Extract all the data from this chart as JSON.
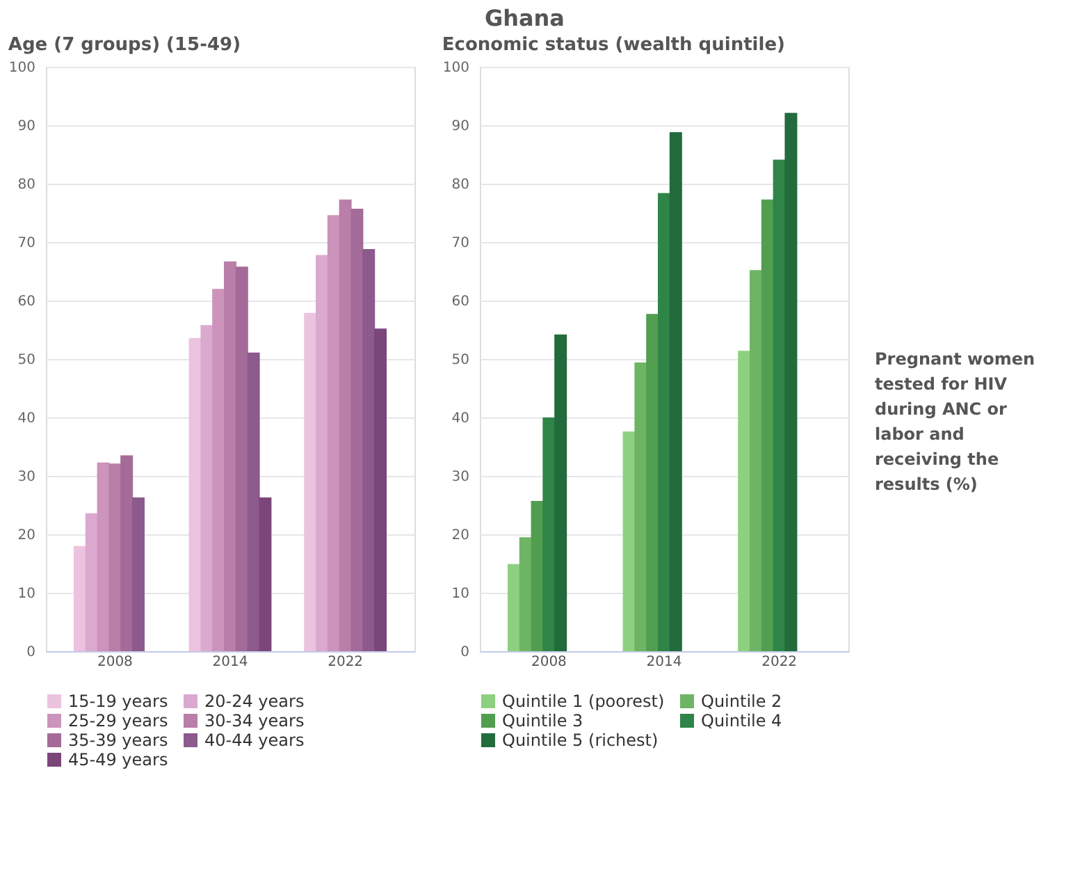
{
  "chart_data": [
    {
      "type": "other",
      "title": "Ghana",
      "annotations": [
        "Pregnant women tested for HIV during ANC or labor and receiving the results (%)"
      ]
    },
    {
      "type": "bar",
      "title": "Age (7 groups) (15-49)",
      "categories": [
        "2008",
        "2014",
        "2022"
      ],
      "ylim": [
        0,
        100
      ],
      "yticks": [
        0,
        10,
        20,
        30,
        40,
        50,
        60,
        70,
        80,
        90,
        100
      ],
      "grid": "y",
      "legend": "bottom",
      "series": [
        {
          "name": "15-19 years",
          "color": "#ebc3df",
          "values": [
            18.0,
            53.6,
            57.9
          ]
        },
        {
          "name": "20-24 years",
          "color": "#dba9cf",
          "values": [
            23.6,
            55.8,
            67.8
          ]
        },
        {
          "name": "25-29 years",
          "color": "#cc93bb",
          "values": [
            32.3,
            62.0,
            74.6
          ]
        },
        {
          "name": "30-34 years",
          "color": "#b97fa8",
          "values": [
            32.1,
            66.7,
            77.3
          ]
        },
        {
          "name": "35-39 years",
          "color": "#a46b98",
          "values": [
            33.5,
            65.8,
            75.7
          ]
        },
        {
          "name": "40-44 years",
          "color": "#8c5a8c",
          "values": [
            26.3,
            51.1,
            68.8
          ]
        },
        {
          "name": "45-49 years",
          "color": "#7b477a",
          "values": [
            null,
            26.3,
            55.2
          ]
        }
      ]
    },
    {
      "type": "bar",
      "title": "Economic status (wealth quintile)",
      "categories": [
        "2008",
        "2014",
        "2022"
      ],
      "ylim": [
        0,
        100
      ],
      "yticks": [
        0,
        10,
        20,
        30,
        40,
        50,
        60,
        70,
        80,
        90,
        100
      ],
      "grid": "y",
      "legend": "bottom",
      "series": [
        {
          "name": "Quintile 1 (poorest)",
          "color": "#8dd07f",
          "values": [
            14.9,
            37.6,
            51.4
          ]
        },
        {
          "name": "Quintile 2",
          "color": "#6db564",
          "values": [
            19.5,
            49.4,
            65.2
          ]
        },
        {
          "name": "Quintile 3",
          "color": "#529e51",
          "values": [
            25.7,
            57.7,
            77.3
          ]
        },
        {
          "name": "Quintile 4",
          "color": "#2f8447",
          "values": [
            40.0,
            78.4,
            84.1
          ]
        },
        {
          "name": "Quintile 5 (richest)",
          "color": "#226b3c",
          "values": [
            54.2,
            88.8,
            92.1
          ]
        }
      ]
    }
  ]
}
